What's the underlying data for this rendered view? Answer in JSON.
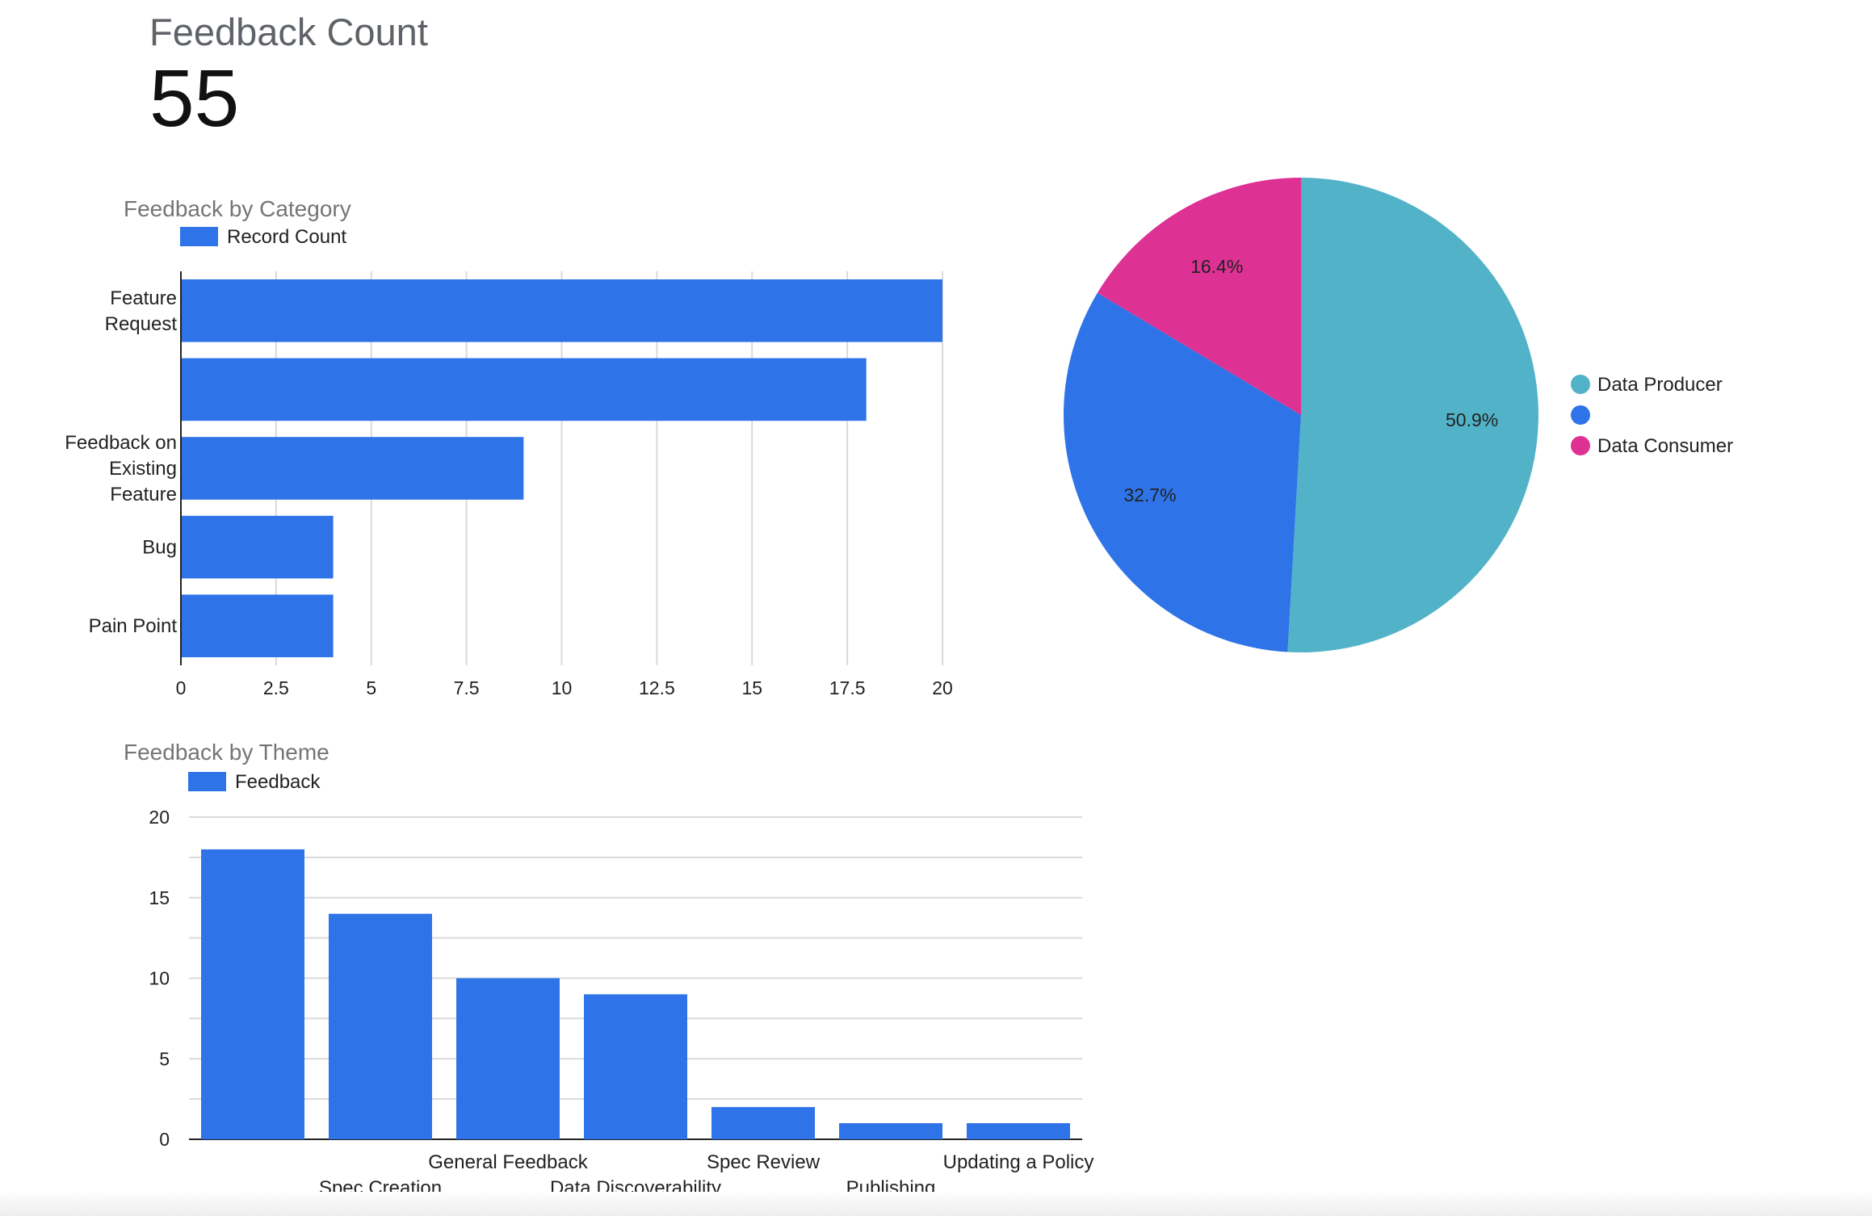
{
  "scorecard": {
    "title": "Feedback Count",
    "value": "55"
  },
  "colors": {
    "blue": "#2e74e8",
    "teal": "#52b3c8",
    "magenta": "#dd3194",
    "grid": "#dadada",
    "text": "#222222",
    "title": "#757575"
  },
  "chart_data": [
    {
      "type": "bar",
      "orientation": "horizontal",
      "title": "Feedback by Category",
      "legend": "top-left",
      "series": [
        {
          "name": "Record Count",
          "values": [
            20,
            18,
            9,
            4,
            4
          ]
        }
      ],
      "categories": [
        "Feature\nRequest",
        "",
        "Feedback on\nExisting\nFeature",
        "Bug",
        "Pain Point"
      ],
      "xticks": [
        "0",
        "2.5",
        "5",
        "7.5",
        "10",
        "12.5",
        "15",
        "17.5",
        "20"
      ],
      "xlim": [
        0,
        20
      ],
      "grid": true
    },
    {
      "type": "pie",
      "title": "",
      "legend": "right",
      "slices": [
        {
          "label": "Data Producer",
          "value": 50.9,
          "display": "50.9%",
          "color": "#52b3c8"
        },
        {
          "label": "",
          "value": 32.7,
          "display": "32.7%",
          "color": "#2e74e8"
        },
        {
          "label": "Data Consumer",
          "value": 16.4,
          "display": "16.4%",
          "color": "#dd3194"
        }
      ]
    },
    {
      "type": "bar",
      "orientation": "vertical",
      "title": "Feedback by Theme",
      "legend": "top-left",
      "series": [
        {
          "name": "Feedback",
          "values": [
            18,
            14,
            10,
            9,
            2,
            1,
            1
          ]
        }
      ],
      "categories": [
        "",
        "Spec Creation",
        "General Feedback",
        "Data Discoverability",
        "Spec Review",
        "Publishing",
        "Updating a Policy"
      ],
      "yticks": [
        "0",
        "5",
        "10",
        "15",
        "20"
      ],
      "ylim": [
        0,
        20
      ],
      "grid": true
    }
  ]
}
